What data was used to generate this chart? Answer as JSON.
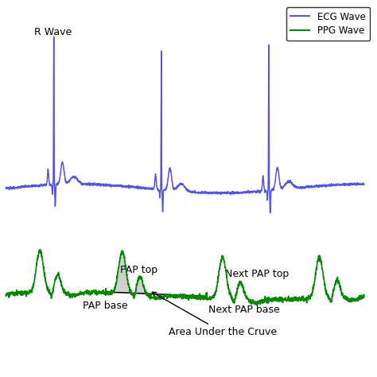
{
  "title": "",
  "ecg_color": "#5555dd",
  "ppg_color": "#008800",
  "fill_color": "#aaaaaa",
  "fill_alpha": 0.55,
  "legend_labels": [
    "ECG Wave",
    "PPG Wave"
  ],
  "annotations": {
    "r_wave": "R Wave",
    "pap_top": "PAP top",
    "next_pap_top": "Next PAP top",
    "pap_base": "PAP base",
    "next_pap_base": "Next PAP base",
    "area_under": "Area Under the Cruve"
  },
  "figsize": [
    4.74,
    4.74
  ],
  "dpi": 100
}
